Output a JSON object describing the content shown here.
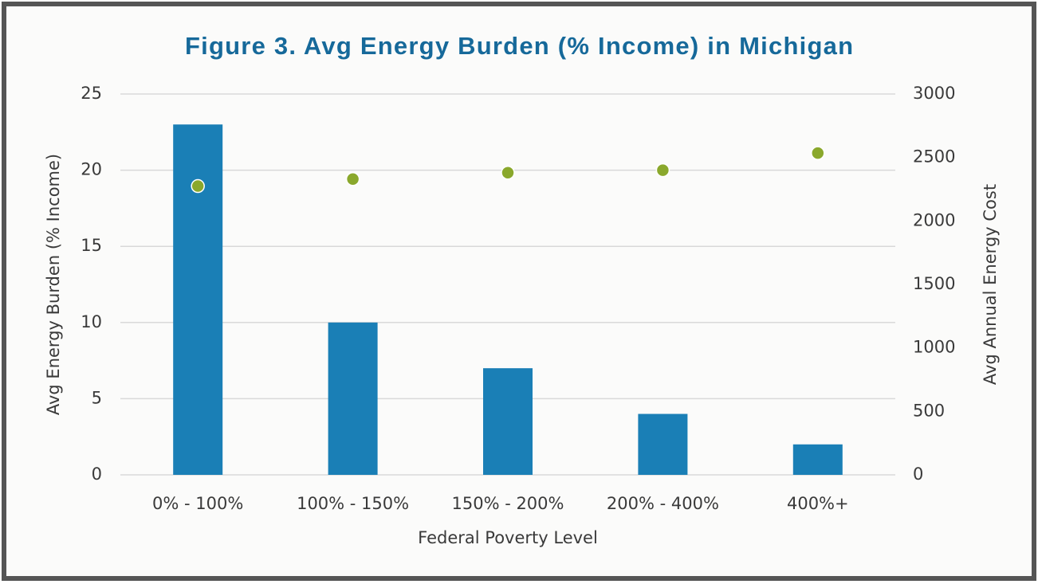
{
  "chart_data": {
    "type": "bar",
    "title": "Figure 3. Avg Energy Burden (% Income) in Michigan",
    "x_label": "Federal Poverty Level",
    "y_label": "Avg Energy Burden (% Income)",
    "y2_label": "Avg Annual Energy Cost",
    "categories": [
      "0% - 100%",
      "100% - 150%",
      "150% - 200%",
      "200% - 400%",
      "400%+"
    ],
    "series": [
      {
        "type": "bar",
        "color": "#1a7fb6",
        "values": [
          23,
          10,
          7,
          4,
          2
        ]
      },
      {
        "type": "scatter",
        "color": "#8aa82c",
        "axis": "y2",
        "values": [
          2275,
          2330,
          2380,
          2400,
          2535
        ]
      }
    ],
    "ylim": [
      0,
      25
    ],
    "yticks": [
      0,
      5,
      10,
      15,
      20,
      25
    ],
    "y2lim": [
      0,
      3000
    ],
    "y2ticks": [
      0,
      500,
      1000,
      1500,
      2000,
      2500,
      3000
    ],
    "grid": true
  }
}
